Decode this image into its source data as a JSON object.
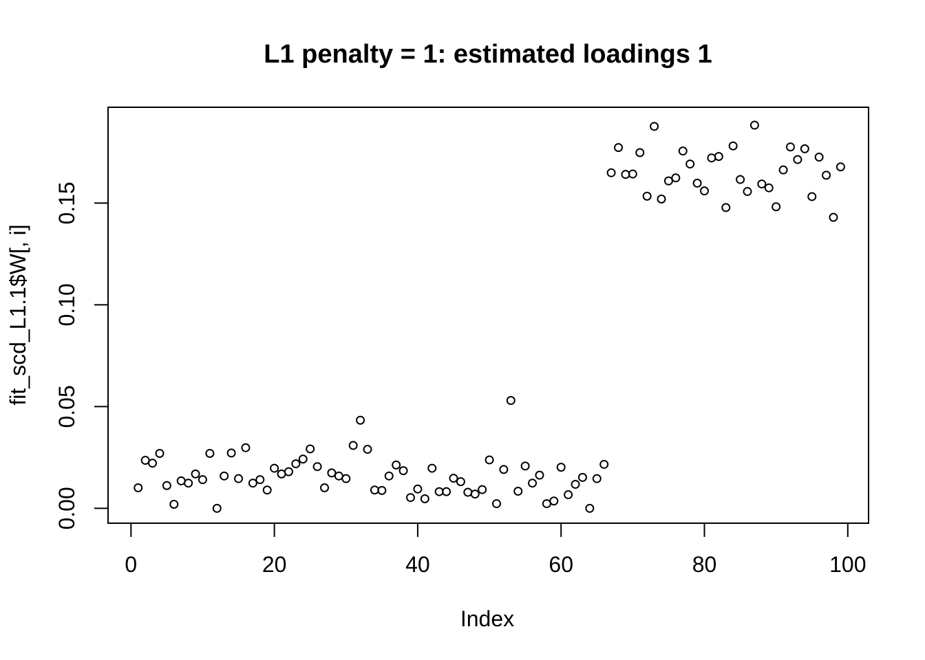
{
  "chart_data": {
    "type": "scatter",
    "title": "L1 penalty = 1: estimated loadings 1",
    "xlabel": "Index",
    "ylabel": "fit_scd_L1.1$W[, i]",
    "point_style": "open-circle",
    "point_color": "#000000",
    "background_color": "#ffffff",
    "grid": false,
    "legend": false,
    "x_ticks": [
      0,
      20,
      40,
      60,
      80,
      100
    ],
    "y_tick_values": [
      0,
      0.05,
      0.1,
      0.15
    ],
    "y_tick_labels": [
      "0.00",
      "0.05",
      "0.10",
      "0.15"
    ],
    "xlim": [
      -3.2,
      102.9
    ],
    "ylim": [
      -0.0073,
      0.1971
    ],
    "x": [
      1,
      2,
      3,
      4,
      5,
      6,
      7,
      8,
      9,
      10,
      11,
      12,
      13,
      14,
      15,
      16,
      17,
      18,
      19,
      20,
      21,
      22,
      23,
      24,
      25,
      26,
      27,
      28,
      29,
      30,
      31,
      32,
      33,
      34,
      35,
      36,
      37,
      38,
      39,
      40,
      41,
      42,
      43,
      44,
      45,
      46,
      47,
      48,
      49,
      50,
      51,
      52,
      53,
      54,
      55,
      56,
      57,
      58,
      59,
      60,
      61,
      62,
      63,
      64,
      65,
      66,
      67,
      68,
      69,
      70,
      71,
      72,
      73,
      74,
      75,
      76,
      77,
      78,
      79,
      80,
      81,
      82,
      83,
      84,
      85,
      86,
      87,
      88,
      89,
      90,
      91,
      92,
      93,
      94,
      95,
      96,
      97,
      98,
      99
    ],
    "y": [
      0.0101,
      0.0236,
      0.0222,
      0.027,
      0.0112,
      0.002,
      0.0135,
      0.0124,
      0.0169,
      0.0141,
      0.027,
      0.0,
      0.0159,
      0.0272,
      0.0146,
      0.0298,
      0.0124,
      0.0141,
      0.009,
      0.0197,
      0.0169,
      0.018,
      0.0219,
      0.0242,
      0.0292,
      0.0205,
      0.0101,
      0.0174,
      0.0159,
      0.0146,
      0.0309,
      0.0433,
      0.029,
      0.009,
      0.0088,
      0.0159,
      0.0213,
      0.0185,
      0.0053,
      0.0095,
      0.0047,
      0.0197,
      0.0082,
      0.0082,
      0.0148,
      0.0131,
      0.0079,
      0.007,
      0.0092,
      0.0238,
      0.0023,
      0.0191,
      0.053,
      0.0084,
      0.0208,
      0.0124,
      0.0163,
      0.0023,
      0.0036,
      0.0202,
      0.0067,
      0.0118,
      0.0152,
      0.0,
      0.0146,
      0.0216,
      0.1649,
      0.1773,
      0.1641,
      0.1643,
      0.1748,
      0.1534,
      0.1877,
      0.152,
      0.1609,
      0.1624,
      0.1756,
      0.1692,
      0.1598,
      0.156,
      0.1722,
      0.1729,
      0.1478,
      0.1781,
      0.1616,
      0.1557,
      0.1883,
      0.1594,
      0.1575,
      0.1482,
      0.1663,
      0.1776,
      0.1714,
      0.1767,
      0.1532,
      0.1726,
      0.1637,
      0.143,
      0.1678
    ]
  }
}
